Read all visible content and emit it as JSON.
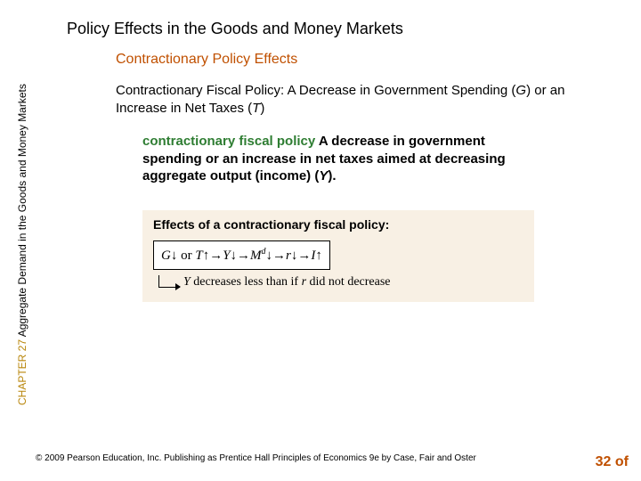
{
  "title": "Policy Effects in the Goods and Money Markets",
  "subtitle": "Contractionary Policy Effects",
  "sidebar": {
    "chapter_label": "CHAPTER 27",
    "chapter_title": "Aggregate Demand in the Goods and Money Markets"
  },
  "main": {
    "subhead_pre": "Contractionary Fiscal Policy:  A Decrease in Government Spending (",
    "subhead_g": "G",
    "subhead_mid": ") or an Increase in Net Taxes (",
    "subhead_t": "T",
    "subhead_post": ")",
    "definition_term": "contractionary fiscal policy",
    "definition_body_1": "  A decrease in government spending or an increase in net taxes aimed at decreasing aggregate output (income) (",
    "definition_y": "Y",
    "definition_body_2": ").",
    "effects_label": "Effects of a contractionary fiscal policy:",
    "formula": {
      "g": "G",
      "down1": "↓",
      "or": " or ",
      "t": "T",
      "up1": "↑",
      "arrow1": "→",
      "y": "Y",
      "down2": "↓",
      "arrow2": "→",
      "m": "M",
      "sup_d": "d",
      "down3": "↓",
      "arrow3": "→",
      "r": "r",
      "down4": "↓",
      "arrow4": "→",
      "i": "I",
      "up2": "↑"
    },
    "line2_y": "Y",
    "line2_text": " decreases less than if ",
    "line2_r": "r",
    "line2_text2": " did not decrease"
  },
  "footer": "© 2009 Pearson Education, Inc. Publishing as Prentice Hall   Principles of Economics 9e by Case, Fair and Oster",
  "page": "32 of",
  "colors": {
    "heading_orange": "#c05000",
    "term_green": "#2e7d32",
    "chapter_gold": "#b8860b",
    "box_bg": "#f8f0e4"
  }
}
